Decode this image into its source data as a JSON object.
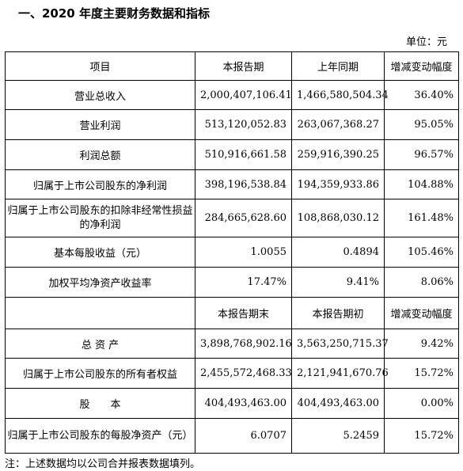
{
  "title": "一、2020 年度主要财务数据和指标",
  "unit": "单位：元",
  "table1": {
    "headers": [
      "项目",
      "本报告期",
      "上年同期",
      "增减变动幅度"
    ],
    "rows": [
      {
        "item": "营业总收入",
        "current": "2,000,407,106.41",
        "previous": "1,466,580,504.34",
        "change": "36.40%"
      },
      {
        "item": "营业利润",
        "current": "513,120,052.83",
        "previous": "263,067,368.27",
        "change": "95.05%"
      },
      {
        "item": "利润总额",
        "current": "510,916,661.58",
        "previous": "259,916,390.25",
        "change": "96.57%"
      },
      {
        "item": "归属于上市公司股东的净利润",
        "current": "398,196,538.84",
        "previous": "194,359,933.86",
        "change": "104.88%"
      },
      {
        "item": "归属于上市公司股东的扣除非经常性损益的净利润",
        "current": "284,665,628.60",
        "previous": "108,868,030.12",
        "change": "161.48%"
      },
      {
        "item": "基本每股收益（元）",
        "current": "1.0055",
        "previous": "0.4894",
        "change": "105.46%"
      },
      {
        "item": "加权平均净资产收益率",
        "current": "17.47%",
        "previous": "9.41%",
        "change": "8.06%"
      }
    ]
  },
  "table2": {
    "headers": [
      "",
      "本报告期末",
      "本报告期初",
      "增减变动幅度"
    ],
    "rows": [
      {
        "item": "总 资 产",
        "current": "3,898,768,902.16",
        "previous": "3,563,250,715.37",
        "change": "9.42%"
      },
      {
        "item": "归属于上市公司股东的所有者权益",
        "current": "2,455,572,468.33",
        "previous": "2,121,941,670.76",
        "change": "15.72%"
      },
      {
        "item": "股　　本",
        "current": "404,493,463.00",
        "previous": "404,493,463.00",
        "change": "0.00%"
      },
      {
        "item": "归属于上市公司股东的每股净资产（元）",
        "current": "6.0707",
        "previous": "5.2459",
        "change": "15.72%"
      }
    ]
  },
  "note": "注：上述数据均以公司合并报表数据填列。"
}
